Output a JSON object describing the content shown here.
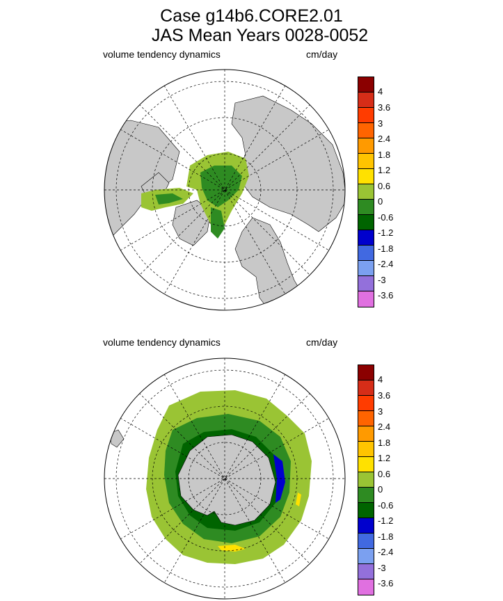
{
  "title_line1": "Case g14b6.CORE2.01",
  "title_line2": "JAS Mean   Years 0028-0052",
  "panels": [
    {
      "id": "north",
      "hemisphere": "Northern",
      "variable_label": "volume tendency dynamics",
      "units_label": "cm/day"
    },
    {
      "id": "south",
      "hemisphere": "Southern",
      "variable_label": "volume tendency dynamics",
      "units_label": "cm/day"
    }
  ],
  "colorbar": {
    "levels": [
      "4",
      "3.6",
      "3",
      "2.4",
      "1.8",
      "1.2",
      "0.6",
      "0",
      "-0.6",
      "-1.2",
      "-1.8",
      "-2.4",
      "-3",
      "-3.6"
    ],
    "colors": [
      "#8b0000",
      "#d62d18",
      "#ff3c00",
      "#ff6400",
      "#ff9a00",
      "#ffc400",
      "#ffe100",
      "#9ac434",
      "#2e8b22",
      "#006400",
      "#0000cd",
      "#4169e1",
      "#7ba0f0",
      "#9370db",
      "#e070e0"
    ]
  },
  "colors": {
    "land": "#c8c8c8",
    "ocean": "#ffffff",
    "grid": "#000000"
  }
}
